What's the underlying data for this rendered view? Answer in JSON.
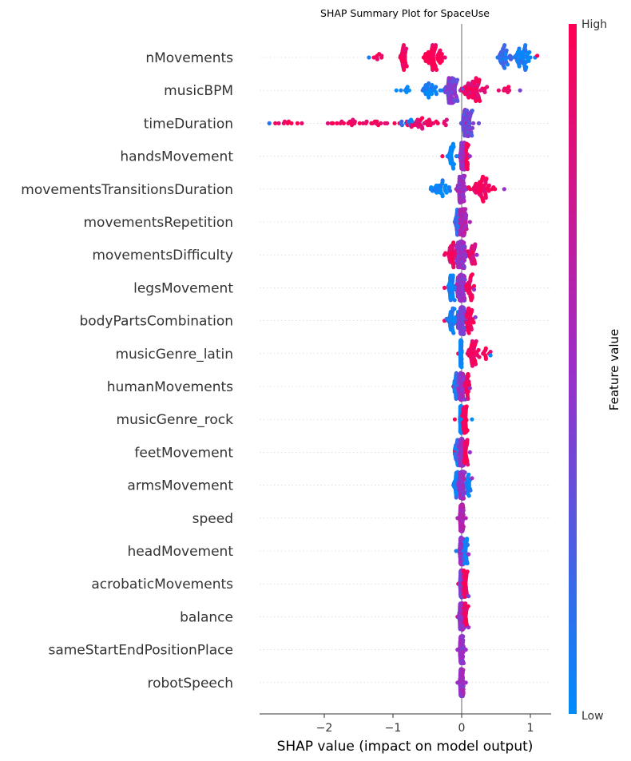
{
  "chart_data": {
    "type": "scatter",
    "subtype": "shap-beeswarm",
    "title": "SHAP Summary Plot for SpaceUse",
    "xlabel": "SHAP value (impact on model output)",
    "xlim": [
      -2.95,
      1.3
    ],
    "xticks": [
      {
        "value": -2,
        "label": "−2"
      },
      {
        "value": -1,
        "label": "−1"
      },
      {
        "value": 0,
        "label": "0"
      },
      {
        "value": 1,
        "label": "1"
      }
    ],
    "colorbar": {
      "label": "Feature value",
      "high_label": "High",
      "low_label": "Low",
      "low_color": "#008bfb",
      "mid_color": "#9b2ec8",
      "high_color": "#ff0052"
    },
    "features": [
      {
        "name": "nMovements",
        "min": -1.35,
        "max": 1.1,
        "clusters": [
          [
            -0.4,
            0.14,
            1.0,
            1.0
          ],
          [
            -0.85,
            0.06,
            0.45,
            0.95
          ],
          [
            -1.2,
            0.08,
            0.12,
            0.98
          ],
          [
            0.6,
            0.08,
            0.55,
            0.15
          ],
          [
            0.9,
            0.12,
            0.8,
            0.06
          ]
        ]
      },
      {
        "name": "musicBPM",
        "min": -0.95,
        "max": 0.85,
        "clusters": [
          [
            -0.15,
            0.08,
            1.0,
            0.4
          ],
          [
            0.2,
            0.15,
            0.7,
            0.9
          ],
          [
            -0.45,
            0.15,
            0.35,
            0.05
          ],
          [
            0.65,
            0.06,
            0.1,
            0.98
          ],
          [
            -0.8,
            0.08,
            0.08,
            0.0
          ]
        ]
      },
      {
        "name": "timeDuration",
        "min": -2.8,
        "max": 0.25,
        "clusters": [
          [
            0.08,
            0.06,
            1.0,
            0.35
          ],
          [
            -0.5,
            0.35,
            0.35,
            0.9
          ],
          [
            -1.6,
            0.6,
            0.3,
            0.95
          ],
          [
            -2.6,
            0.15,
            0.08,
            0.98
          ],
          [
            -0.8,
            0.1,
            0.08,
            0.1
          ]
        ]
      },
      {
        "name": "handsMovement",
        "min": -0.28,
        "max": 0.12,
        "clusters": [
          [
            0.02,
            0.03,
            1.0,
            0.5
          ],
          [
            -0.15,
            0.06,
            0.25,
            0.0
          ],
          [
            0.08,
            0.02,
            0.2,
            0.98
          ]
        ]
      },
      {
        "name": "movementsTransitionsDuration",
        "min": -0.45,
        "max": 0.62,
        "clusters": [
          [
            0.0,
            0.05,
            1.0,
            0.5
          ],
          [
            0.3,
            0.18,
            0.5,
            0.95
          ],
          [
            -0.3,
            0.1,
            0.3,
            0.02
          ]
        ]
      },
      {
        "name": "movementsRepetition",
        "min": -0.1,
        "max": 0.12,
        "clusters": [
          [
            0.02,
            0.04,
            1.0,
            0.6
          ],
          [
            -0.06,
            0.03,
            0.3,
            0.2
          ]
        ]
      },
      {
        "name": "movementsDifficulty",
        "min": -0.25,
        "max": 0.22,
        "clusters": [
          [
            0.0,
            0.05,
            1.0,
            0.5
          ],
          [
            -0.15,
            0.06,
            0.3,
            0.9
          ],
          [
            0.15,
            0.05,
            0.2,
            0.85
          ]
        ]
      },
      {
        "name": "legsMovement",
        "min": -0.25,
        "max": 0.18,
        "clusters": [
          [
            0.0,
            0.05,
            1.0,
            0.5
          ],
          [
            -0.15,
            0.06,
            0.3,
            0.05
          ],
          [
            0.12,
            0.05,
            0.25,
            0.95
          ]
        ]
      },
      {
        "name": "bodyPartsCombination",
        "min": -0.25,
        "max": 0.2,
        "clusters": [
          [
            0.0,
            0.04,
            1.0,
            0.4
          ],
          [
            -0.15,
            0.06,
            0.3,
            0.05
          ],
          [
            0.1,
            0.06,
            0.25,
            0.98
          ]
        ]
      },
      {
        "name": "musicGenre_latin",
        "min": -0.05,
        "max": 0.42,
        "clusters": [
          [
            -0.01,
            0.01,
            1.0,
            0.0
          ],
          [
            0.15,
            0.08,
            0.3,
            0.98
          ],
          [
            0.35,
            0.05,
            0.08,
            0.98
          ]
        ]
      },
      {
        "name": "humanMovements",
        "min": -0.12,
        "max": 0.12,
        "clusters": [
          [
            0.0,
            0.04,
            1.0,
            0.5
          ],
          [
            -0.08,
            0.03,
            0.3,
            0.1
          ],
          [
            0.08,
            0.03,
            0.2,
            0.95
          ]
        ]
      },
      {
        "name": "musicGenre_rock",
        "min": -0.1,
        "max": 0.15,
        "clusters": [
          [
            -0.01,
            0.01,
            1.0,
            0.0
          ],
          [
            0.05,
            0.04,
            0.35,
            0.98
          ]
        ]
      },
      {
        "name": "feetMovement",
        "min": -0.1,
        "max": 0.12,
        "clusters": [
          [
            0.0,
            0.03,
            1.0,
            0.5
          ],
          [
            -0.06,
            0.03,
            0.2,
            0.1
          ],
          [
            0.06,
            0.03,
            0.2,
            0.95
          ]
        ]
      },
      {
        "name": "armsMovement",
        "min": -0.12,
        "max": 0.15,
        "clusters": [
          [
            0.0,
            0.03,
            1.0,
            0.5
          ],
          [
            -0.08,
            0.03,
            0.25,
            0.05
          ],
          [
            0.1,
            0.03,
            0.15,
            0.02
          ]
        ]
      },
      {
        "name": "speed",
        "min": -0.06,
        "max": 0.06,
        "clusters": [
          [
            0.0,
            0.02,
            1.0,
            0.6
          ]
        ]
      },
      {
        "name": "headMovement",
        "min": -0.08,
        "max": 0.1,
        "clusters": [
          [
            0.0,
            0.03,
            1.0,
            0.5
          ],
          [
            0.06,
            0.03,
            0.2,
            0.05
          ]
        ]
      },
      {
        "name": "acrobaticMovements",
        "min": -0.05,
        "max": 0.1,
        "clusters": [
          [
            0.0,
            0.02,
            1.0,
            0.4
          ],
          [
            0.05,
            0.03,
            0.25,
            0.95
          ]
        ]
      },
      {
        "name": "balance",
        "min": -0.06,
        "max": 0.1,
        "clusters": [
          [
            0.0,
            0.03,
            1.0,
            0.5
          ],
          [
            0.05,
            0.03,
            0.2,
            0.95
          ]
        ]
      },
      {
        "name": "sameStartEndPositionPlace",
        "min": -0.06,
        "max": 0.06,
        "clusters": [
          [
            0.0,
            0.02,
            1.0,
            0.5
          ]
        ]
      },
      {
        "name": "robotSpeech",
        "min": -0.06,
        "max": 0.06,
        "clusters": [
          [
            0.0,
            0.02,
            1.0,
            0.5
          ]
        ]
      }
    ]
  }
}
